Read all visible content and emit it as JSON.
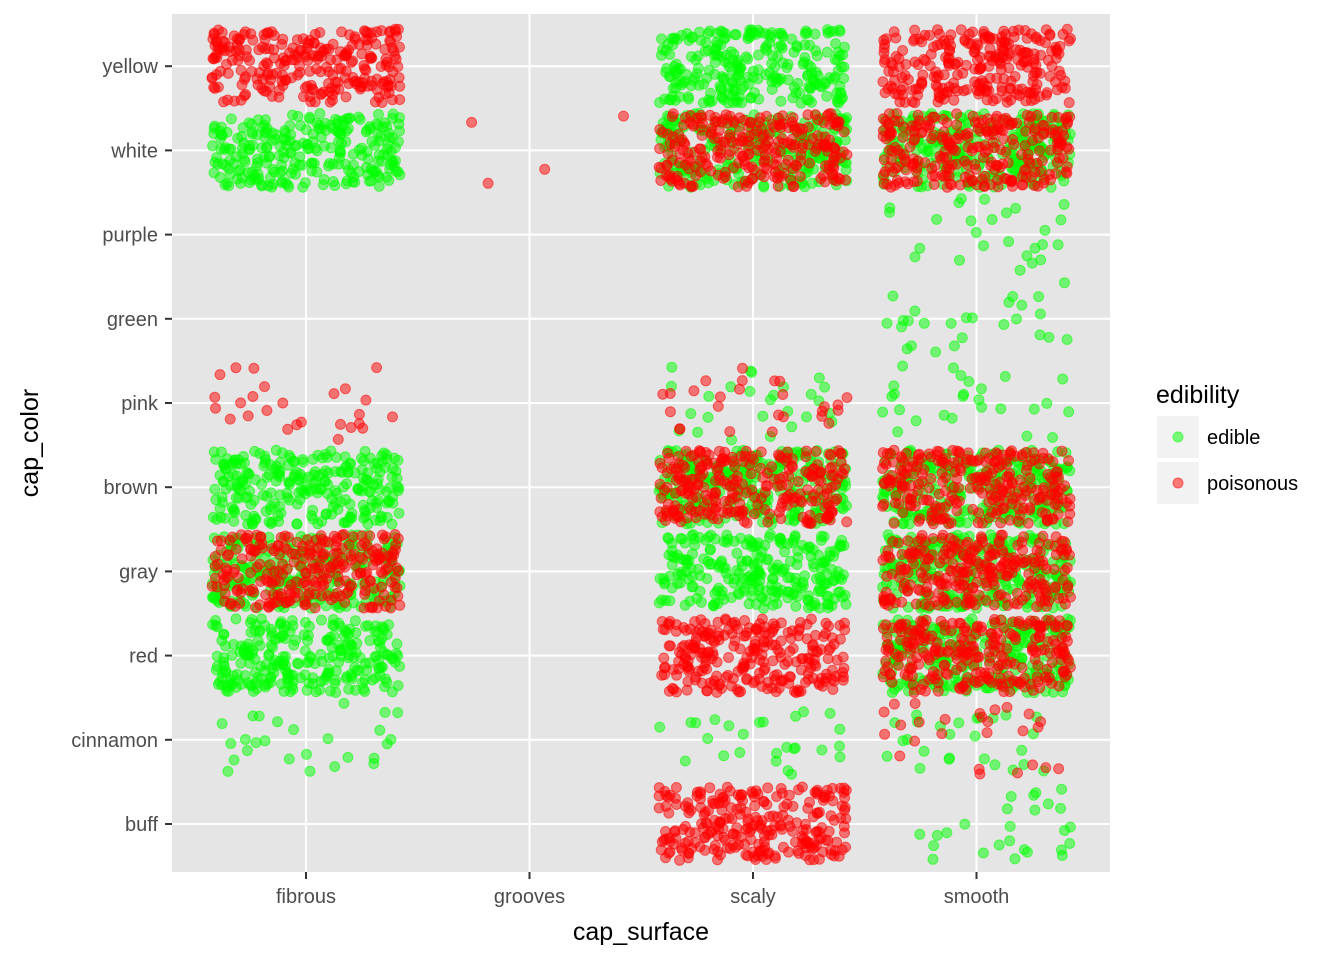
{
  "chart_data": {
    "type": "scatter",
    "jitter": true,
    "title": "",
    "xlabel": "cap_surface",
    "ylabel": "cap_color",
    "x_categories": [
      "fibrous",
      "grooves",
      "scaly",
      "smooth"
    ],
    "y_categories": [
      "buff",
      "cinnamon",
      "red",
      "gray",
      "brown",
      "pink",
      "green",
      "purple",
      "white",
      "yellow"
    ],
    "grid": true,
    "legend": {
      "title": "edibility",
      "position": "right",
      "entries": [
        {
          "name": "edible",
          "color": "#00ff00"
        },
        {
          "name": "poisonous",
          "color": "#ff0000"
        }
      ]
    },
    "colors": {
      "panel": "#e5e5e5",
      "grid": "#ffffff",
      "edible": "#00ff00",
      "poisonous": "#ff0000"
    },
    "counts": [
      {
        "x": "fibrous",
        "y": "yellow",
        "edible": 0,
        "poisonous": 1
      },
      {
        "x": "fibrous",
        "y": "white",
        "edible": 1,
        "poisonous": 0
      },
      {
        "x": "fibrous",
        "y": "pink",
        "edible": 0,
        "poisonous": 1
      },
      {
        "x": "fibrous",
        "y": "brown",
        "edible": 1,
        "poisonous": 0
      },
      {
        "x": "fibrous",
        "y": "gray",
        "edible": 1,
        "poisonous": 1
      },
      {
        "x": "fibrous",
        "y": "red",
        "edible": 1,
        "poisonous": 0
      },
      {
        "x": "fibrous",
        "y": "cinnamon",
        "edible": 1,
        "poisonous": 0
      },
      {
        "x": "grooves",
        "y": "white",
        "edible": 0,
        "poisonous": 1
      },
      {
        "x": "scaly",
        "y": "yellow",
        "edible": 1,
        "poisonous": 0
      },
      {
        "x": "scaly",
        "y": "white",
        "edible": 1,
        "poisonous": 1
      },
      {
        "x": "scaly",
        "y": "pink",
        "edible": 1,
        "poisonous": 1
      },
      {
        "x": "scaly",
        "y": "brown",
        "edible": 1,
        "poisonous": 1
      },
      {
        "x": "scaly",
        "y": "gray",
        "edible": 1,
        "poisonous": 0
      },
      {
        "x": "scaly",
        "y": "red",
        "edible": 0,
        "poisonous": 1
      },
      {
        "x": "scaly",
        "y": "cinnamon",
        "edible": 1,
        "poisonous": 0
      },
      {
        "x": "scaly",
        "y": "buff",
        "edible": 0,
        "poisonous": 1
      },
      {
        "x": "smooth",
        "y": "yellow",
        "edible": 0,
        "poisonous": 1
      },
      {
        "x": "smooth",
        "y": "white",
        "edible": 1,
        "poisonous": 1
      },
      {
        "x": "smooth",
        "y": "purple",
        "edible": 1,
        "poisonous": 0
      },
      {
        "x": "smooth",
        "y": "green",
        "edible": 1,
        "poisonous": 0
      },
      {
        "x": "smooth",
        "y": "pink",
        "edible": 1,
        "poisonous": 0
      },
      {
        "x": "smooth",
        "y": "brown",
        "edible": 1,
        "poisonous": 1
      },
      {
        "x": "smooth",
        "y": "gray",
        "edible": 1,
        "poisonous": 1
      },
      {
        "x": "smooth",
        "y": "red",
        "edible": 1,
        "poisonous": 1
      },
      {
        "x": "smooth",
        "y": "cinnamon",
        "edible": 1,
        "poisonous": 1
      },
      {
        "x": "smooth",
        "y": "buff",
        "edible": 1,
        "poisonous": 0
      }
    ]
  }
}
